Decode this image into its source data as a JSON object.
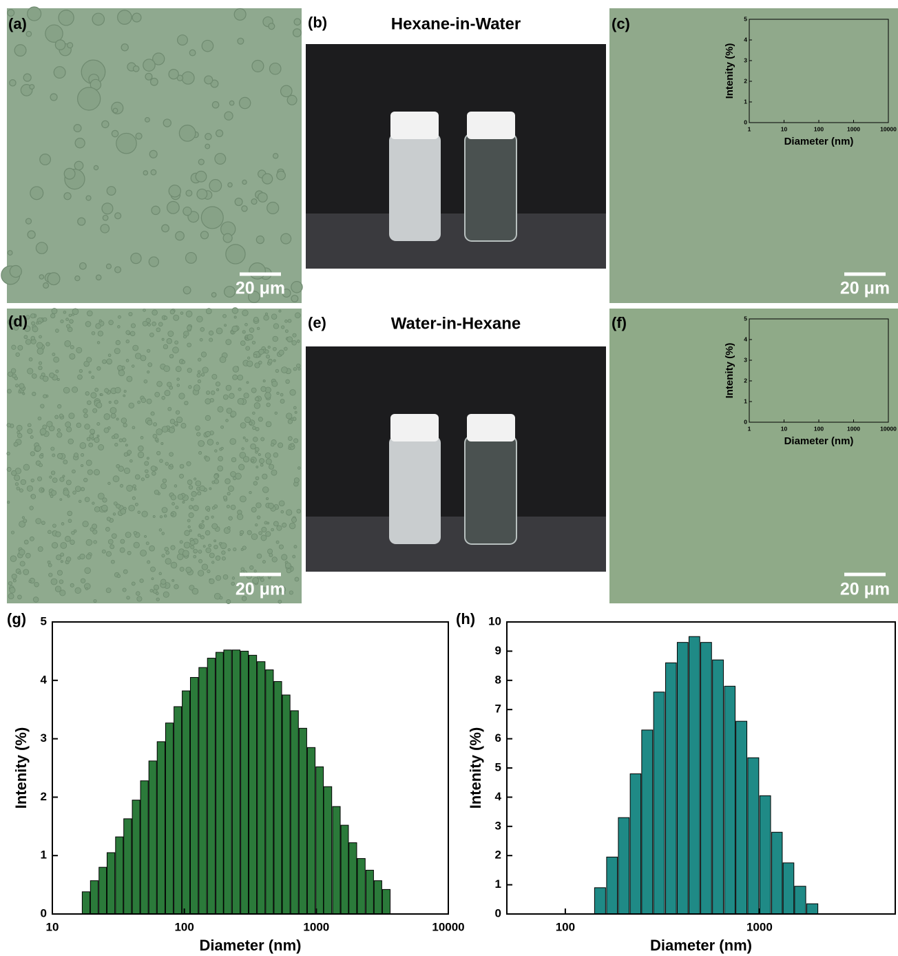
{
  "panel_labels": [
    "(a)",
    "(b)",
    "(c)",
    "(d)",
    "(e)",
    "(f)",
    "(g)",
    "(h)"
  ],
  "scale_bars": [
    "20 μm",
    "20 μm",
    "20 μm",
    "20 μm"
  ],
  "photo_titles": [
    "Hexane-in-Water",
    "Water-in-Hexane"
  ],
  "chart_data": [
    {
      "type": "bar",
      "x_label": "Diameter (nm)",
      "y_label": "Intenity (%)",
      "log_x": true,
      "xlim": [
        1,
        10000
      ],
      "xticks": [
        1,
        10,
        100,
        1000,
        10000
      ],
      "ylim": [
        0,
        5
      ],
      "yticks": [
        0,
        1,
        2,
        3,
        4,
        5
      ]
    },
    {
      "type": "bar",
      "x_label": "Diameter (nm)",
      "y_label": "Intenity (%)",
      "log_x": true,
      "xlim": [
        1,
        10000
      ],
      "xticks": [
        1,
        10,
        100,
        1000,
        10000
      ],
      "ylim": [
        0,
        5
      ],
      "yticks": [
        0,
        1,
        2,
        3,
        4,
        5
      ]
    },
    {
      "type": "bar",
      "x_label": "Diameter (nm)",
      "y_label": "Intenity (%)",
      "log_x": true,
      "color": "#2b7a3a",
      "edgecolor": "#000000",
      "xlim": [
        10,
        10000
      ],
      "xticks": [
        10,
        100,
        1000,
        10000
      ],
      "ylim": [
        0,
        5
      ],
      "yticks": [
        0,
        1,
        2,
        3,
        4,
        5
      ],
      "x": [
        18,
        20.8,
        24.1,
        27.8,
        32.2,
        37.2,
        43.1,
        49.8,
        57.6,
        66.6,
        77.1,
        89.2,
        103,
        119,
        138,
        160,
        185,
        213,
        247,
        286,
        330,
        382,
        442,
        511,
        591,
        684,
        791,
        915,
        1060,
        1220,
        1420,
        1640,
        1890,
        2190,
        2540,
        2930,
        3390
      ],
      "values": [
        0.38,
        0.57,
        0.8,
        1.05,
        1.32,
        1.63,
        1.95,
        2.28,
        2.62,
        2.95,
        3.27,
        3.55,
        3.82,
        4.05,
        4.22,
        4.38,
        4.48,
        4.52,
        4.52,
        4.5,
        4.43,
        4.32,
        4.18,
        3.98,
        3.75,
        3.48,
        3.18,
        2.85,
        2.52,
        2.18,
        1.84,
        1.52,
        1.22,
        0.95,
        0.75,
        0.57,
        0.42
      ]
    },
    {
      "type": "bar",
      "x_label": "Diameter (nm)",
      "y_label": "Intenity (%)",
      "log_x": true,
      "color": "#1f8a86",
      "edgecolor": "#000000",
      "xlim": [
        50,
        5000
      ],
      "xticks": [
        100,
        1000
      ],
      "ylim": [
        0,
        10
      ],
      "yticks": [
        0,
        1,
        2,
        3,
        4,
        5,
        6,
        7,
        8,
        9,
        10
      ],
      "x": [
        151,
        174,
        200,
        230,
        264,
        304,
        350,
        402,
        462,
        531,
        611,
        703,
        807,
        929,
        1070,
        1230,
        1410,
        1620,
        1870
      ],
      "values": [
        0.9,
        1.95,
        3.3,
        4.8,
        6.3,
        7.6,
        8.6,
        9.3,
        9.5,
        9.3,
        8.7,
        7.8,
        6.6,
        5.35,
        4.05,
        2.8,
        1.75,
        0.95,
        0.35
      ]
    }
  ]
}
